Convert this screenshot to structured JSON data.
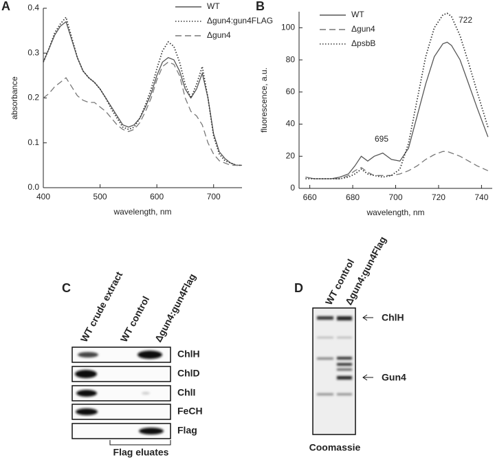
{
  "chart_data": [
    {
      "type": "line",
      "panel": "A",
      "x_label": "wavelength, nm",
      "y_label": "absorbance",
      "xlim": [
        400,
        750
      ],
      "xticks": [
        400,
        500,
        600,
        700
      ],
      "ylim": [
        0,
        0.4
      ],
      "yticks": [
        {
          "value": 0,
          "label": "0.0"
        },
        0.1,
        0.2,
        0.3,
        0.4
      ],
      "x": [
        400,
        410,
        420,
        430,
        440,
        450,
        460,
        470,
        480,
        490,
        500,
        510,
        520,
        530,
        540,
        550,
        560,
        570,
        580,
        590,
        600,
        610,
        620,
        630,
        640,
        650,
        660,
        670,
        680,
        690,
        700,
        710,
        720,
        730,
        740,
        750
      ],
      "series": [
        {
          "name": "WT",
          "color": "#555555",
          "dash": "solid",
          "values": [
            0.28,
            0.31,
            0.34,
            0.36,
            0.37,
            0.33,
            0.29,
            0.26,
            0.245,
            0.235,
            0.22,
            0.2,
            0.18,
            0.16,
            0.14,
            0.135,
            0.14,
            0.155,
            0.18,
            0.21,
            0.25,
            0.28,
            0.29,
            0.285,
            0.26,
            0.22,
            0.2,
            0.22,
            0.255,
            0.2,
            0.12,
            0.08,
            0.065,
            0.055,
            0.05,
            0.05
          ]
        },
        {
          "name": "Δgun4:gun4FLAG",
          "color": "#333333",
          "dash": "dotted",
          "values": [
            0.28,
            0.31,
            0.345,
            0.365,
            0.38,
            0.335,
            0.29,
            0.26,
            0.245,
            0.235,
            0.22,
            0.2,
            0.175,
            0.155,
            0.135,
            0.13,
            0.135,
            0.155,
            0.185,
            0.22,
            0.265,
            0.305,
            0.325,
            0.315,
            0.28,
            0.23,
            0.2,
            0.23,
            0.27,
            0.2,
            0.115,
            0.075,
            0.06,
            0.055,
            0.05,
            0.05
          ]
        },
        {
          "name": "Δgun4",
          "color": "#777777",
          "dash": "dashed",
          "values": [
            0.2,
            0.21,
            0.225,
            0.235,
            0.245,
            0.225,
            0.205,
            0.195,
            0.19,
            0.19,
            0.18,
            0.17,
            0.155,
            0.14,
            0.13,
            0.125,
            0.13,
            0.145,
            0.17,
            0.2,
            0.24,
            0.27,
            0.28,
            0.275,
            0.25,
            0.2,
            0.17,
            0.16,
            0.14,
            0.1,
            0.075,
            0.06,
            0.055,
            0.05,
            0.05,
            0.05
          ]
        }
      ]
    },
    {
      "type": "line",
      "panel": "B",
      "x_label": "wavelength, nm",
      "y_label": "fluorescence, a.u.",
      "xlim": [
        655,
        745
      ],
      "xticks": [
        660,
        680,
        700,
        720,
        740
      ],
      "ylim": [
        0,
        110
      ],
      "yticks": [
        0,
        20,
        40,
        60,
        80,
        100
      ],
      "annotations": [
        "695",
        "722"
      ],
      "x": [
        658,
        662,
        666,
        670,
        674,
        678,
        681,
        684,
        687,
        690,
        694,
        698,
        702,
        706,
        710,
        714,
        718,
        722,
        724,
        726,
        730,
        734,
        738,
        743
      ],
      "series": [
        {
          "name": "WT",
          "color": "#555555",
          "dash": "solid",
          "values": [
            7,
            6,
            6,
            6,
            7,
            9,
            14,
            20,
            17,
            20,
            22,
            18,
            17,
            25,
            45,
            65,
            82,
            90,
            91,
            89,
            80,
            65,
            50,
            32
          ]
        },
        {
          "name": "Δgun4",
          "color": "#777777",
          "dash": "dashed",
          "values": [
            7,
            6,
            6,
            6,
            6,
            8,
            11,
            13,
            10,
            8,
            8,
            8,
            9,
            11,
            14,
            18,
            21,
            23,
            23,
            22,
            20,
            17,
            14,
            11
          ]
        },
        {
          "name": "ΔpsbB",
          "color": "#333333",
          "dash": "dotted",
          "values": [
            6,
            6,
            6,
            6,
            6,
            7,
            9,
            12,
            9,
            8,
            7,
            8,
            12,
            28,
            55,
            82,
            100,
            108,
            109,
            107,
            95,
            78,
            60,
            38
          ]
        }
      ]
    }
  ],
  "panel_c": {
    "label": "C",
    "columns": [
      "WT crude extract",
      "WT control",
      "Δgun4:gun4Flag"
    ],
    "rows": [
      "ChlH",
      "ChlD",
      "ChlI",
      "FeCH",
      "Flag"
    ],
    "footer": "Flag eluates"
  },
  "panel_d": {
    "label": "D",
    "columns": [
      "WT control",
      "Δgun4:gun4Flag"
    ],
    "markers": [
      "ChlH",
      "Gun4"
    ],
    "footer": "Coomassie"
  }
}
